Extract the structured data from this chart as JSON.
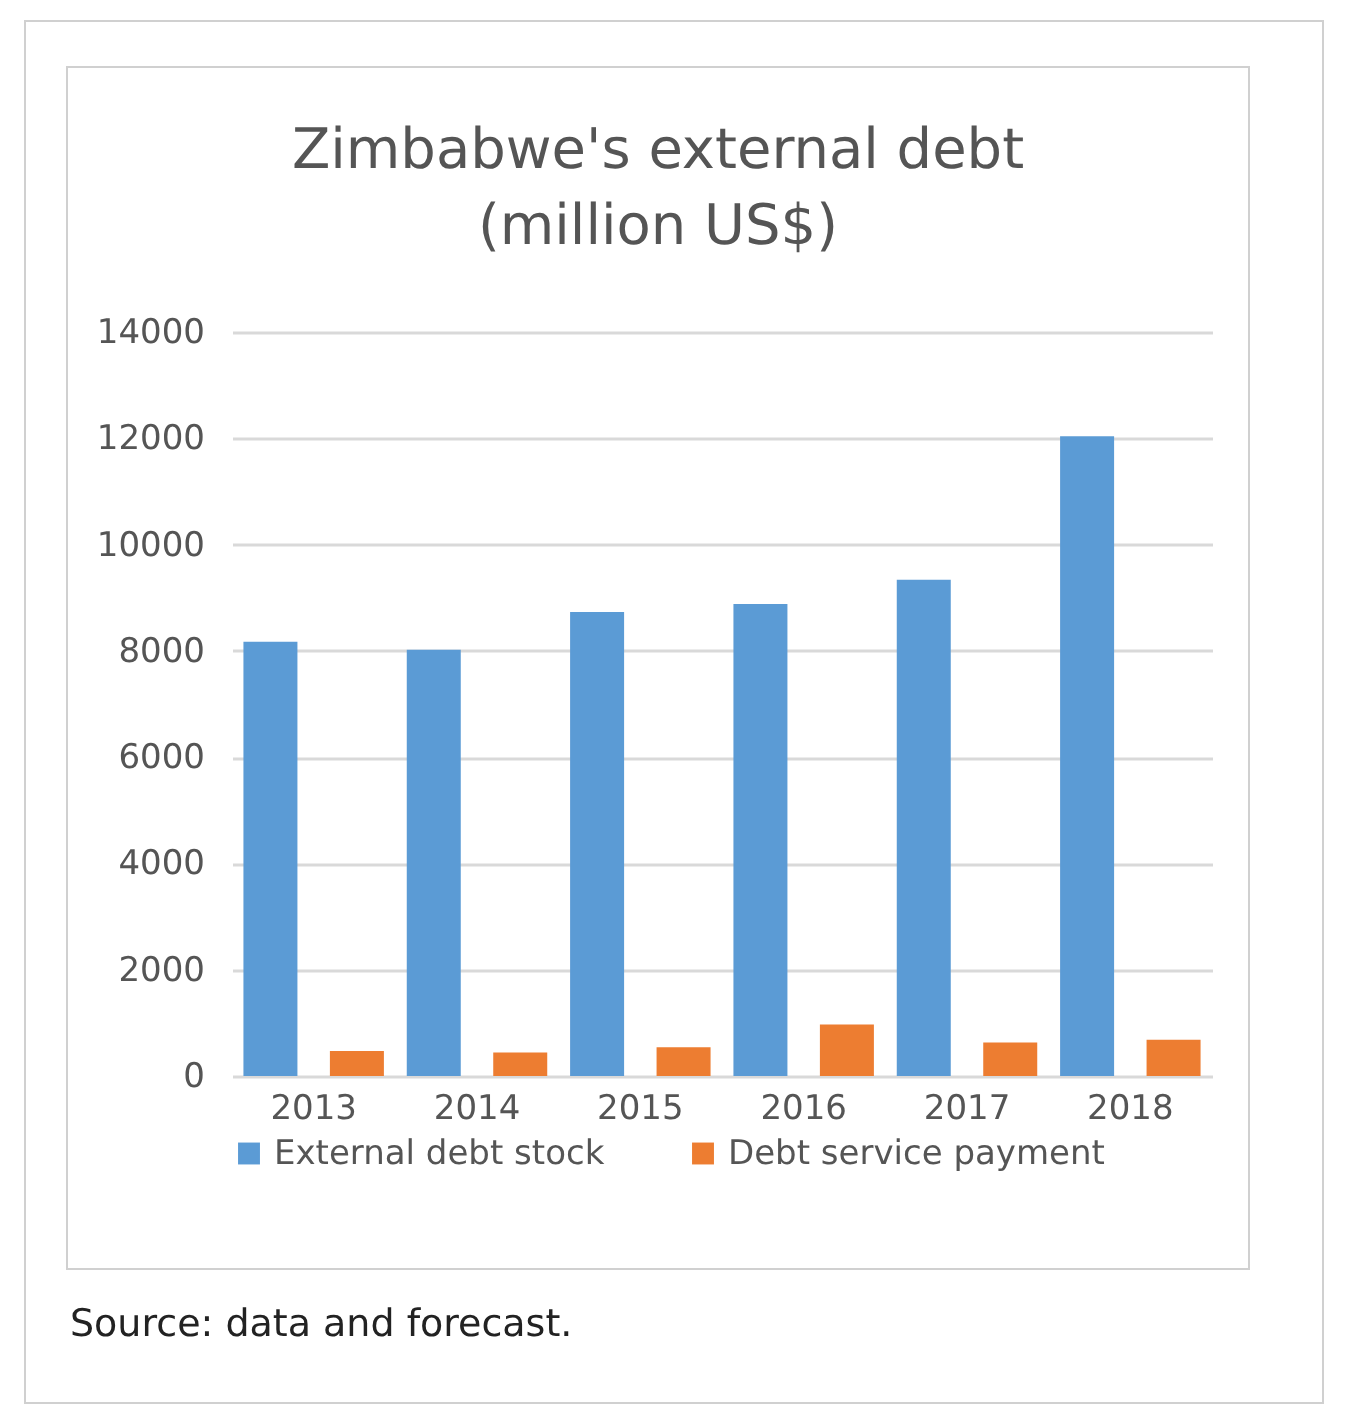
{
  "chart_data": {
    "type": "bar",
    "title": "Zimbabwe's external debt (million US$)",
    "categories": [
      "2013",
      "2014",
      "2015",
      "2016",
      "2017",
      "2018"
    ],
    "series": [
      {
        "name": "External debt stock",
        "color": "#5b9bd5",
        "values": [
          8170,
          8020,
          8730,
          8880,
          9340,
          12040
        ]
      },
      {
        "name": "Debt service payment",
        "color": "#ed7d31",
        "values": [
          470,
          440,
          540,
          970,
          630,
          680
        ]
      }
    ],
    "ylim": [
      0,
      14000
    ],
    "yticks": [
      0,
      2000,
      4000,
      6000,
      8000,
      10000,
      12000,
      14000
    ],
    "grid": "y",
    "legend": "bottom",
    "annotations": [
      "Source: data and forecast."
    ]
  }
}
